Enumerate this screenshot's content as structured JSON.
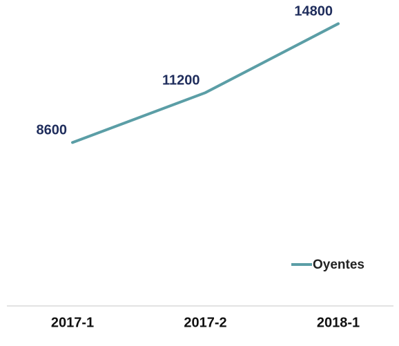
{
  "chart_data": {
    "type": "line",
    "categories": [
      "2017-1",
      "2017-2",
      "2018-1"
    ],
    "series": [
      {
        "name": "Oyentes",
        "color": "#5b9ea6",
        "values": [
          8600,
          11200,
          14800
        ]
      }
    ],
    "ylim": [
      0,
      16000
    ],
    "legend": "bottom-right"
  }
}
